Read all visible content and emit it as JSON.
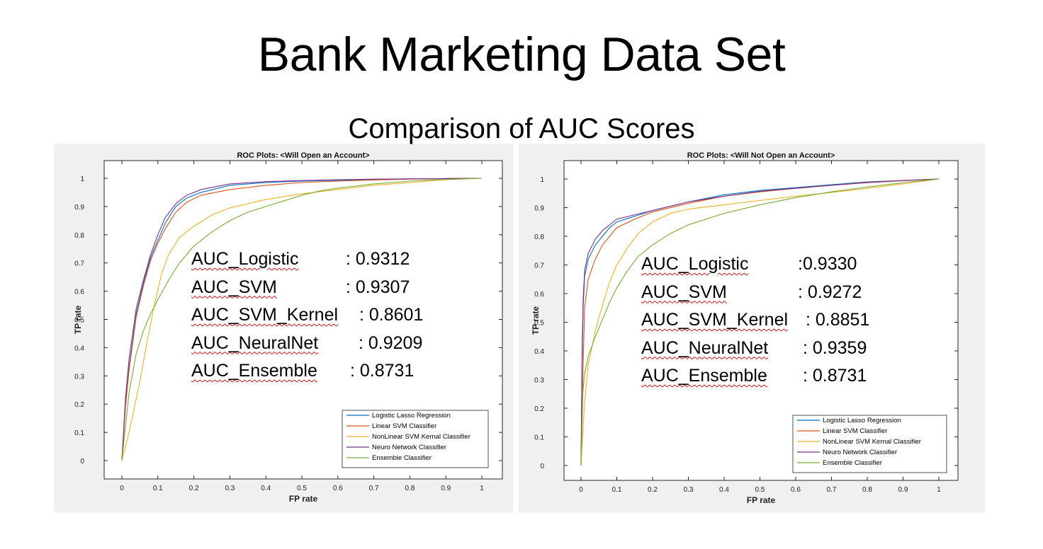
{
  "slide": {
    "title": "Bank Marketing Data Set",
    "subtitle": "Comparison of AUC Scores"
  },
  "chart_data": [
    {
      "type": "line",
      "title": "ROC Plots: <Will Open an Account>",
      "xlabel": "FP rate",
      "ylabel": "TP rate",
      "xlim": [
        0,
        1
      ],
      "ylim": [
        0,
        1
      ],
      "xticks": [
        0,
        0.1,
        0.2,
        0.3,
        0.4,
        0.5,
        0.6,
        0.7,
        0.8,
        0.9,
        1
      ],
      "yticks": [
        0,
        0.1,
        0.2,
        0.3,
        0.4,
        0.5,
        0.6,
        0.7,
        0.8,
        0.9,
        1
      ],
      "grid": false,
      "legend_position": "bottom-right",
      "series": [
        {
          "name": "Logistic Lasso Regression",
          "color": "#0072bd",
          "x": [
            0,
            0.01,
            0.02,
            0.04,
            0.06,
            0.08,
            0.1,
            0.12,
            0.15,
            0.18,
            0.22,
            0.3,
            0.4,
            0.5,
            0.6,
            0.7,
            0.8,
            0.9,
            1.0
          ],
          "y": [
            0,
            0.2,
            0.33,
            0.52,
            0.63,
            0.72,
            0.78,
            0.84,
            0.9,
            0.93,
            0.95,
            0.975,
            0.985,
            0.99,
            0.993,
            0.996,
            0.998,
            0.999,
            1.0
          ]
        },
        {
          "name": "Linear SVM Classifier",
          "color": "#d95319",
          "x": [
            0,
            0.01,
            0.02,
            0.04,
            0.06,
            0.08,
            0.1,
            0.12,
            0.15,
            0.18,
            0.22,
            0.3,
            0.4,
            0.5,
            0.6,
            0.7,
            0.8,
            0.9,
            1.0
          ],
          "y": [
            0,
            0.19,
            0.32,
            0.51,
            0.62,
            0.71,
            0.77,
            0.82,
            0.88,
            0.915,
            0.94,
            0.96,
            0.975,
            0.985,
            0.99,
            0.994,
            0.997,
            0.999,
            1.0
          ]
        },
        {
          "name": "NonLinear SVM Kernal Classifier",
          "color": "#edb120",
          "x": [
            0,
            0.02,
            0.05,
            0.07,
            0.09,
            0.11,
            0.13,
            0.16,
            0.2,
            0.25,
            0.3,
            0.4,
            0.5,
            0.6,
            0.7,
            0.8,
            0.9,
            1.0
          ],
          "y": [
            0,
            0.1,
            0.28,
            0.42,
            0.55,
            0.66,
            0.73,
            0.79,
            0.83,
            0.87,
            0.895,
            0.925,
            0.945,
            0.96,
            0.975,
            0.985,
            0.995,
            1.0
          ]
        },
        {
          "name": "Neuro Network Classifier",
          "color": "#7e2f8e",
          "x": [
            0,
            0.01,
            0.02,
            0.04,
            0.06,
            0.08,
            0.1,
            0.12,
            0.15,
            0.18,
            0.22,
            0.3,
            0.4,
            0.5,
            0.6,
            0.7,
            0.8,
            0.9,
            1.0
          ],
          "y": [
            0,
            0.22,
            0.36,
            0.54,
            0.64,
            0.73,
            0.8,
            0.86,
            0.91,
            0.94,
            0.96,
            0.98,
            0.988,
            0.992,
            0.995,
            0.997,
            0.998,
            0.999,
            1.0
          ]
        },
        {
          "name": "Ensemble Classifier",
          "color": "#77ac30",
          "x": [
            0,
            0.02,
            0.04,
            0.06,
            0.08,
            0.1,
            0.13,
            0.16,
            0.2,
            0.25,
            0.3,
            0.35,
            0.4,
            0.45,
            0.5,
            0.55,
            0.6,
            0.7,
            0.8,
            0.9,
            1.0
          ],
          "y": [
            0,
            0.24,
            0.38,
            0.46,
            0.52,
            0.57,
            0.64,
            0.7,
            0.76,
            0.81,
            0.85,
            0.88,
            0.9,
            0.92,
            0.94,
            0.955,
            0.965,
            0.98,
            0.99,
            0.996,
            1.0
          ]
        }
      ],
      "annotations": [
        {
          "label": "AUC_Logistic",
          "value": ": 0.9312"
        },
        {
          "label": "AUC_SVM",
          "value": ": 0.9307"
        },
        {
          "label": "AUC_SVM_Kernel",
          "value": ": 0.8601"
        },
        {
          "label": "AUC_NeuralNet",
          "value": ": 0.9209"
        },
        {
          "label": "AUC_Ensemble",
          "value": ": 0.8731"
        }
      ]
    },
    {
      "type": "line",
      "title": "ROC Plots: <Will Not Open an Account>",
      "xlabel": "FP rate",
      "ylabel": "TP rate",
      "xlim": [
        0,
        1
      ],
      "ylim": [
        0,
        1
      ],
      "xticks": [
        0,
        0.1,
        0.2,
        0.3,
        0.4,
        0.5,
        0.6,
        0.7,
        0.8,
        0.9,
        1
      ],
      "yticks": [
        0,
        0.1,
        0.2,
        0.3,
        0.4,
        0.5,
        0.6,
        0.7,
        0.8,
        0.9,
        1
      ],
      "grid": false,
      "legend_position": "bottom-right",
      "series": [
        {
          "name": "Logistic Lasso Regression",
          "color": "#0072bd",
          "x": [
            0,
            0.003,
            0.006,
            0.01,
            0.02,
            0.04,
            0.06,
            0.08,
            0.1,
            0.15,
            0.2,
            0.3,
            0.4,
            0.5,
            0.6,
            0.7,
            0.8,
            0.9,
            1.0
          ],
          "y": [
            0,
            0.35,
            0.55,
            0.66,
            0.72,
            0.77,
            0.8,
            0.83,
            0.85,
            0.87,
            0.89,
            0.92,
            0.945,
            0.96,
            0.97,
            0.98,
            0.99,
            0.995,
            1.0
          ]
        },
        {
          "name": "Linear SVM Classifier",
          "color": "#d95319",
          "x": [
            0,
            0.003,
            0.006,
            0.01,
            0.02,
            0.04,
            0.06,
            0.08,
            0.1,
            0.15,
            0.2,
            0.3,
            0.4,
            0.5,
            0.6,
            0.7,
            0.8,
            0.9,
            1.0
          ],
          "y": [
            0,
            0.15,
            0.35,
            0.55,
            0.65,
            0.72,
            0.77,
            0.8,
            0.83,
            0.86,
            0.885,
            0.915,
            0.94,
            0.955,
            0.967,
            0.978,
            0.988,
            0.995,
            1.0
          ]
        },
        {
          "name": "NonLinear SVM Kernal Classifier",
          "color": "#edb120",
          "x": [
            0,
            0.01,
            0.02,
            0.04,
            0.06,
            0.08,
            0.1,
            0.13,
            0.16,
            0.2,
            0.25,
            0.3,
            0.4,
            0.5,
            0.6,
            0.7,
            0.8,
            0.9,
            1.0
          ],
          "y": [
            0,
            0.22,
            0.35,
            0.47,
            0.56,
            0.64,
            0.7,
            0.76,
            0.81,
            0.85,
            0.88,
            0.895,
            0.91,
            0.925,
            0.94,
            0.953,
            0.967,
            0.983,
            1.0
          ]
        },
        {
          "name": "Neuro Network Classifier",
          "color": "#7e2f8e",
          "x": [
            0,
            0.003,
            0.006,
            0.01,
            0.02,
            0.04,
            0.06,
            0.08,
            0.1,
            0.15,
            0.2,
            0.3,
            0.4,
            0.5,
            0.6,
            0.7,
            0.8,
            0.9,
            1.0
          ],
          "y": [
            0,
            0.4,
            0.58,
            0.68,
            0.74,
            0.79,
            0.82,
            0.84,
            0.86,
            0.875,
            0.89,
            0.92,
            0.94,
            0.957,
            0.968,
            0.978,
            0.987,
            0.994,
            1.0
          ]
        },
        {
          "name": "Ensemble Classifier",
          "color": "#77ac30",
          "x": [
            0,
            0.005,
            0.01,
            0.02,
            0.04,
            0.06,
            0.08,
            0.1,
            0.13,
            0.16,
            0.2,
            0.25,
            0.3,
            0.4,
            0.5,
            0.6,
            0.7,
            0.8,
            0.9,
            1.0
          ],
          "y": [
            0,
            0.25,
            0.32,
            0.38,
            0.45,
            0.51,
            0.57,
            0.62,
            0.68,
            0.73,
            0.77,
            0.81,
            0.84,
            0.88,
            0.91,
            0.935,
            0.955,
            0.972,
            0.987,
            1.0
          ]
        }
      ],
      "annotations": [
        {
          "label": "AUC_Logistic",
          "value": ":0.9330"
        },
        {
          "label": "AUC_SVM",
          "value": ": 0.9272"
        },
        {
          "label": "AUC_SVM_Kernel",
          "value": ": 0.8851"
        },
        {
          "label": "AUC_NeuralNet",
          "value": ": 0.9359"
        },
        {
          "label": "AUC_Ensemble",
          "value": ": 0.8731"
        }
      ]
    }
  ]
}
